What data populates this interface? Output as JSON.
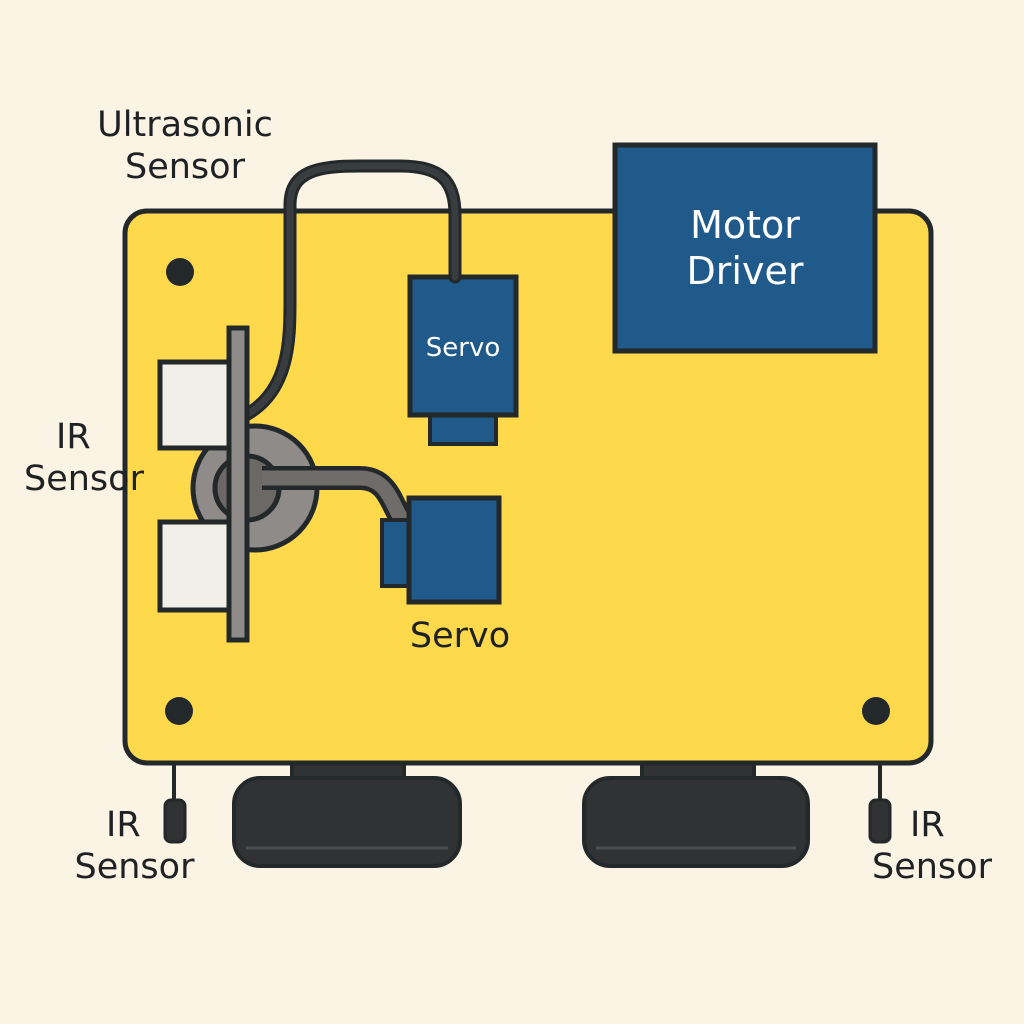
{
  "colors": {
    "background": "#fbf3e4",
    "board": "#fdd94b",
    "outline": "#23282b",
    "module_blue": "#1f5a8b",
    "sensor_face": "#f2efe9",
    "mount_gray": "#8f8b89",
    "wheel": "#303233",
    "cable": "#3a3d40"
  },
  "labels": {
    "ultrasonic_sensor": [
      "Ultrasonic",
      "Sensor"
    ],
    "motor_driver": [
      "Motor",
      "Driver"
    ],
    "servo_top": "Servo",
    "servo_bottom": "Servo",
    "ir_sensor_left": [
      "IR",
      "Sensor"
    ],
    "ir_sensor_bottom_left": [
      "IR",
      "Sensor"
    ],
    "ir_sensor_bottom_right": [
      "IR",
      "Sensor"
    ]
  }
}
